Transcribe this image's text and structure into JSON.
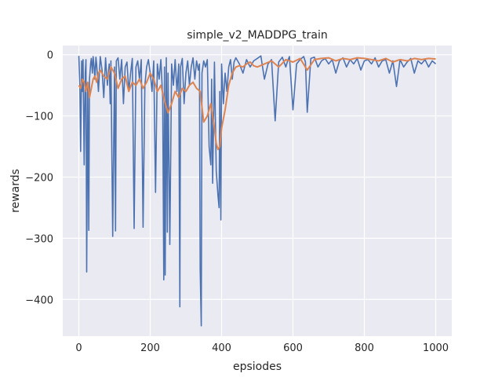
{
  "chart_data": {
    "type": "line",
    "title": "simple_v2_MADDPG_train",
    "xlabel": "epsiodes",
    "ylabel": "rewards",
    "xlim": [
      -45,
      1045
    ],
    "ylim": [
      -460,
      15
    ],
    "xticks": [
      0,
      200,
      400,
      600,
      800,
      1000
    ],
    "xtick_labels": [
      "0",
      "200",
      "400",
      "600",
      "800",
      "1000"
    ],
    "yticks": [
      0,
      -100,
      -200,
      -300,
      -400
    ],
    "ytick_labels": [
      "0",
      "−100",
      "−200",
      "−300",
      "−400"
    ],
    "grid": true,
    "background": "#eaeaf2",
    "grid_color": "#ffffff",
    "colors": {
      "raw": "#4c72b0",
      "smoothed": "#dd8452"
    },
    "series": [
      {
        "key": "raw",
        "x": [
          0,
          3,
          5,
          8,
          10,
          12,
          15,
          18,
          20,
          22,
          25,
          28,
          30,
          33,
          35,
          38,
          40,
          43,
          45,
          48,
          50,
          55,
          60,
          65,
          70,
          75,
          80,
          85,
          88,
          90,
          95,
          100,
          103,
          105,
          110,
          115,
          120,
          125,
          130,
          135,
          140,
          145,
          150,
          155,
          160,
          165,
          170,
          175,
          180,
          185,
          190,
          195,
          200,
          205,
          210,
          215,
          220,
          225,
          230,
          235,
          238,
          240,
          242,
          245,
          248,
          250,
          255,
          260,
          265,
          270,
          275,
          280,
          283,
          285,
          290,
          295,
          300,
          305,
          310,
          315,
          320,
          325,
          330,
          335,
          338,
          340,
          343,
          345,
          350,
          355,
          360,
          365,
          370,
          372,
          375,
          380,
          385,
          390,
          393,
          395,
          398,
          400,
          405,
          410,
          415,
          420,
          425,
          430,
          435,
          440,
          450,
          460,
          470,
          480,
          490,
          500,
          510,
          520,
          530,
          540,
          550,
          560,
          570,
          580,
          585,
          590,
          600,
          610,
          620,
          630,
          635,
          640,
          650,
          660,
          670,
          680,
          690,
          700,
          710,
          720,
          730,
          740,
          750,
          760,
          770,
          780,
          790,
          800,
          810,
          820,
          830,
          840,
          850,
          860,
          870,
          880,
          890,
          900,
          910,
          920,
          930,
          940,
          950,
          960,
          970,
          980,
          990,
          1000
        ],
        "y": [
          -2,
          -50,
          -158,
          -10,
          -60,
          -8,
          -180,
          -30,
          -8,
          -355,
          -50,
          -287,
          -40,
          -15,
          -6,
          -30,
          -3,
          -20,
          -40,
          -4,
          -15,
          -60,
          -3,
          -25,
          -70,
          -5,
          -50,
          -15,
          -80,
          -10,
          -297,
          -20,
          -288,
          -10,
          -5,
          -40,
          -8,
          -80,
          -20,
          -12,
          -60,
          -30,
          -6,
          -284,
          -20,
          -10,
          -40,
          -8,
          -282,
          -50,
          -20,
          -8,
          -30,
          -60,
          -10,
          -225,
          -15,
          -40,
          -8,
          -70,
          -368,
          -20,
          -360,
          -5,
          -290,
          -30,
          -310,
          -15,
          -50,
          -8,
          -60,
          -15,
          -412,
          -20,
          -6,
          -80,
          -30,
          -10,
          -50,
          -20,
          -5,
          -40,
          -10,
          -25,
          -15,
          -350,
          -443,
          -30,
          -10,
          -20,
          -8,
          -150,
          -180,
          -40,
          -210,
          -12,
          -190,
          -230,
          -250,
          -60,
          -270,
          -15,
          -80,
          -30,
          -60,
          -20,
          -8,
          -40,
          -12,
          -5,
          -15,
          -30,
          -8,
          -20,
          -10,
          -6,
          -2,
          -40,
          -15,
          -8,
          -108,
          -12,
          -4,
          -20,
          -10,
          -3,
          -90,
          -15,
          -8,
          -3,
          -12,
          -94,
          -6,
          -4,
          -20,
          -10,
          -6,
          -15,
          -8,
          -30,
          -10,
          -5,
          -20,
          -8,
          -15,
          -6,
          -25,
          -10,
          -8,
          -15,
          -5,
          -20,
          -10,
          -8,
          -30,
          -10,
          -52,
          -8,
          -20,
          -12,
          -6,
          -30,
          -10,
          -15,
          -8,
          -20,
          -10,
          -15
        ]
      },
      {
        "key": "smoothed",
        "x": [
          0,
          5,
          10,
          15,
          20,
          25,
          30,
          35,
          40,
          45,
          50,
          55,
          60,
          70,
          80,
          90,
          100,
          110,
          120,
          130,
          140,
          150,
          160,
          170,
          180,
          190,
          200,
          210,
          220,
          230,
          240,
          250,
          260,
          270,
          280,
          290,
          300,
          310,
          320,
          330,
          340,
          350,
          360,
          370,
          380,
          385,
          390,
          395,
          400,
          410,
          420,
          430,
          440,
          450,
          460,
          470,
          480,
          490,
          500,
          520,
          540,
          560,
          580,
          600,
          620,
          640,
          660,
          680,
          700,
          720,
          740,
          760,
          780,
          800,
          820,
          840,
          860,
          880,
          900,
          920,
          940,
          960,
          980,
          1000
        ],
        "y": [
          -50,
          -55,
          -40,
          -45,
          -60,
          -45,
          -70,
          -55,
          -40,
          -35,
          -45,
          -30,
          -25,
          -35,
          -40,
          -20,
          -30,
          -55,
          -40,
          -35,
          -60,
          -45,
          -50,
          -40,
          -55,
          -45,
          -30,
          -40,
          -60,
          -50,
          -75,
          -95,
          -80,
          -60,
          -70,
          -55,
          -60,
          -50,
          -45,
          -55,
          -60,
          -110,
          -100,
          -80,
          -120,
          -145,
          -155,
          -150,
          -120,
          -90,
          -50,
          -30,
          -20,
          -18,
          -20,
          -15,
          -12,
          -18,
          -20,
          -15,
          -10,
          -20,
          -8,
          -12,
          -6,
          -25,
          -8,
          -6,
          -5,
          -10,
          -6,
          -8,
          -5,
          -6,
          -8,
          -10,
          -6,
          -12,
          -8,
          -10,
          -6,
          -8,
          -6,
          -7
        ]
      }
    ]
  }
}
